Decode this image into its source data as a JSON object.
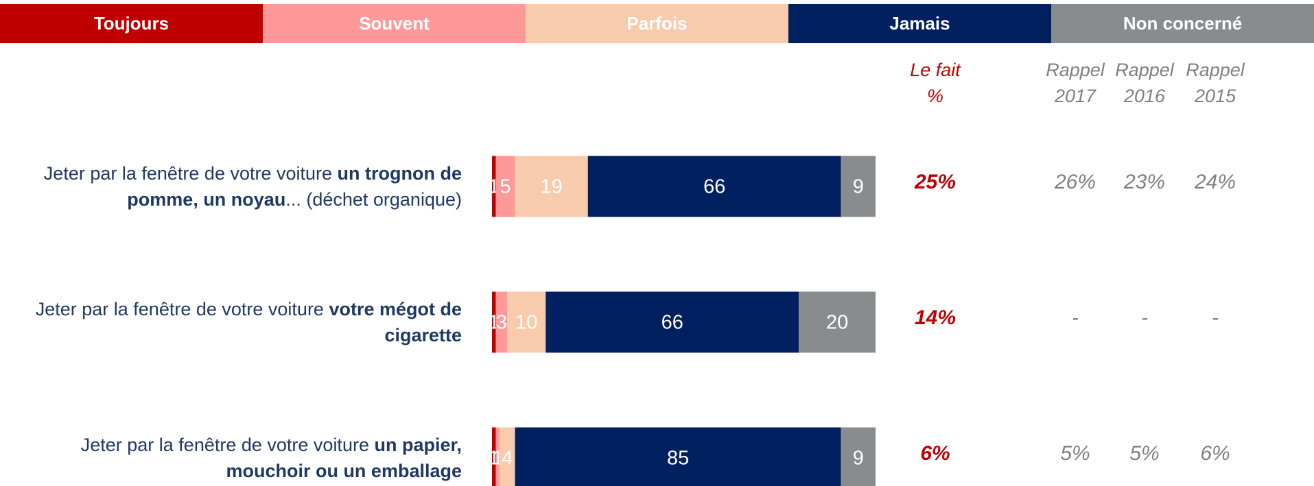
{
  "chart_data": {
    "type": "bar",
    "orientation": "horizontal",
    "stacked": true,
    "xlim": [
      0,
      100
    ],
    "categories": [
      [
        "Jeter par la fenêtre de votre voiture ",
        "un trognon de pomme, un noyau",
        "... (déchet organique)"
      ],
      [
        "Jeter par la fenêtre de votre voiture ",
        "votre mégot de cigarette"
      ],
      [
        "Jeter par la fenêtre de votre voiture ",
        "un papier, mouchoir ou un emballage"
      ]
    ],
    "series": [
      {
        "name": "Toujours",
        "color": "#c00000",
        "values": [
          1,
          1,
          1
        ]
      },
      {
        "name": "Souvent",
        "color": "#ff9999",
        "values": [
          5,
          3,
          1
        ]
      },
      {
        "name": "Parfois",
        "color": "#f8cbad",
        "values": [
          19,
          10,
          4
        ]
      },
      {
        "name": "Jamais",
        "color": "#002060",
        "values": [
          66,
          66,
          85
        ]
      },
      {
        "name": "Non concerné",
        "color": "#898c8e",
        "values": [
          9,
          20,
          9
        ]
      }
    ],
    "columns": [
      {
        "header": [
          "Le fait",
          "%"
        ],
        "values": [
          "25%",
          "14%",
          "6%"
        ],
        "color": "#c00000",
        "bold": true
      },
      {
        "header": [
          "Rappel",
          "2017"
        ],
        "values": [
          "26%",
          "-",
          "5%"
        ],
        "color": "#7f7f7f",
        "bold": false
      },
      {
        "header": [
          "Rappel",
          "2016"
        ],
        "values": [
          "23%",
          "-",
          "5%"
        ],
        "color": "#7f7f7f",
        "bold": false
      },
      {
        "header": [
          "Rappel",
          "2015"
        ],
        "values": [
          "24%",
          "-",
          "6%"
        ],
        "color": "#7f7f7f",
        "bold": false
      }
    ]
  }
}
